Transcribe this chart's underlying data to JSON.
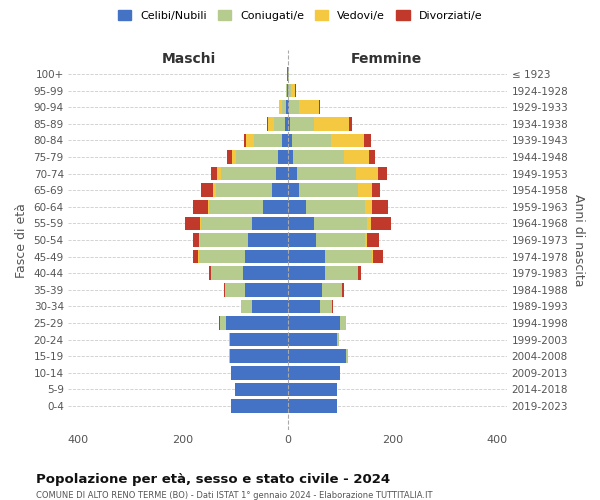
{
  "age_groups": [
    "100+",
    "95-99",
    "90-94",
    "85-89",
    "80-84",
    "75-79",
    "70-74",
    "65-69",
    "60-64",
    "55-59",
    "50-54",
    "45-49",
    "40-44",
    "35-39",
    "30-34",
    "25-29",
    "20-24",
    "15-19",
    "10-14",
    "5-9",
    "0-4"
  ],
  "birth_years": [
    "≤ 1923",
    "1924-1928",
    "1929-1933",
    "1934-1938",
    "1939-1943",
    "1944-1948",
    "1949-1953",
    "1954-1958",
    "1959-1963",
    "1964-1968",
    "1969-1973",
    "1974-1978",
    "1979-1983",
    "1984-1988",
    "1989-1993",
    "1994-1998",
    "1999-2003",
    "2004-2008",
    "2009-2013",
    "2014-2018",
    "2019-2023"
  ],
  "maschi": {
    "celibi": [
      1,
      1,
      3,
      6,
      10,
      18,
      22,
      30,
      48,
      68,
      75,
      82,
      85,
      82,
      68,
      118,
      110,
      110,
      108,
      100,
      108
    ],
    "coniugati": [
      0,
      2,
      8,
      20,
      55,
      80,
      105,
      108,
      102,
      98,
      92,
      88,
      62,
      38,
      22,
      12,
      3,
      2,
      0,
      0,
      0
    ],
    "vedovi": [
      0,
      1,
      5,
      12,
      15,
      8,
      8,
      5,
      3,
      2,
      2,
      1,
      0,
      0,
      0,
      0,
      0,
      0,
      0,
      0,
      0
    ],
    "divorziati": [
      0,
      0,
      0,
      2,
      4,
      10,
      12,
      22,
      28,
      28,
      12,
      10,
      4,
      2,
      0,
      2,
      0,
      0,
      0,
      0,
      0
    ]
  },
  "femmine": {
    "nubili": [
      1,
      1,
      2,
      5,
      8,
      10,
      18,
      22,
      35,
      50,
      55,
      72,
      72,
      65,
      62,
      100,
      95,
      112,
      100,
      95,
      95
    ],
    "coniugate": [
      1,
      5,
      20,
      45,
      75,
      98,
      112,
      112,
      112,
      102,
      92,
      90,
      62,
      38,
      22,
      12,
      4,
      3,
      0,
      0,
      0
    ],
    "vedove": [
      1,
      8,
      38,
      68,
      62,
      48,
      42,
      28,
      15,
      8,
      5,
      2,
      1,
      0,
      0,
      0,
      0,
      0,
      0,
      0,
      0
    ],
    "divorziate": [
      0,
      2,
      2,
      5,
      14,
      10,
      18,
      15,
      30,
      38,
      22,
      18,
      5,
      4,
      2,
      0,
      0,
      0,
      0,
      0,
      0
    ]
  },
  "colors": {
    "celibi_nubili": "#4472C4",
    "coniugati": "#B5CC8E",
    "vedovi": "#F5C842",
    "divorziati": "#C0392B"
  },
  "title": "Popolazione per età, sesso e stato civile - 2024",
  "subtitle": "COMUNE DI ALTO RENO TERME (BO) - Dati ISTAT 1° gennaio 2024 - Elaborazione TUTTITALIA.IT",
  "xlabel_maschi": "Maschi",
  "xlabel_femmine": "Femmine",
  "ylabel_left": "Fasce di età",
  "ylabel_right": "Anni di nascita",
  "xlim": 420,
  "background_color": "#ffffff",
  "grid_color": "#cccccc",
  "legend_labels": [
    "Celibi/Nubili",
    "Coniugati/e",
    "Vedovi/e",
    "Divorziati/e"
  ]
}
